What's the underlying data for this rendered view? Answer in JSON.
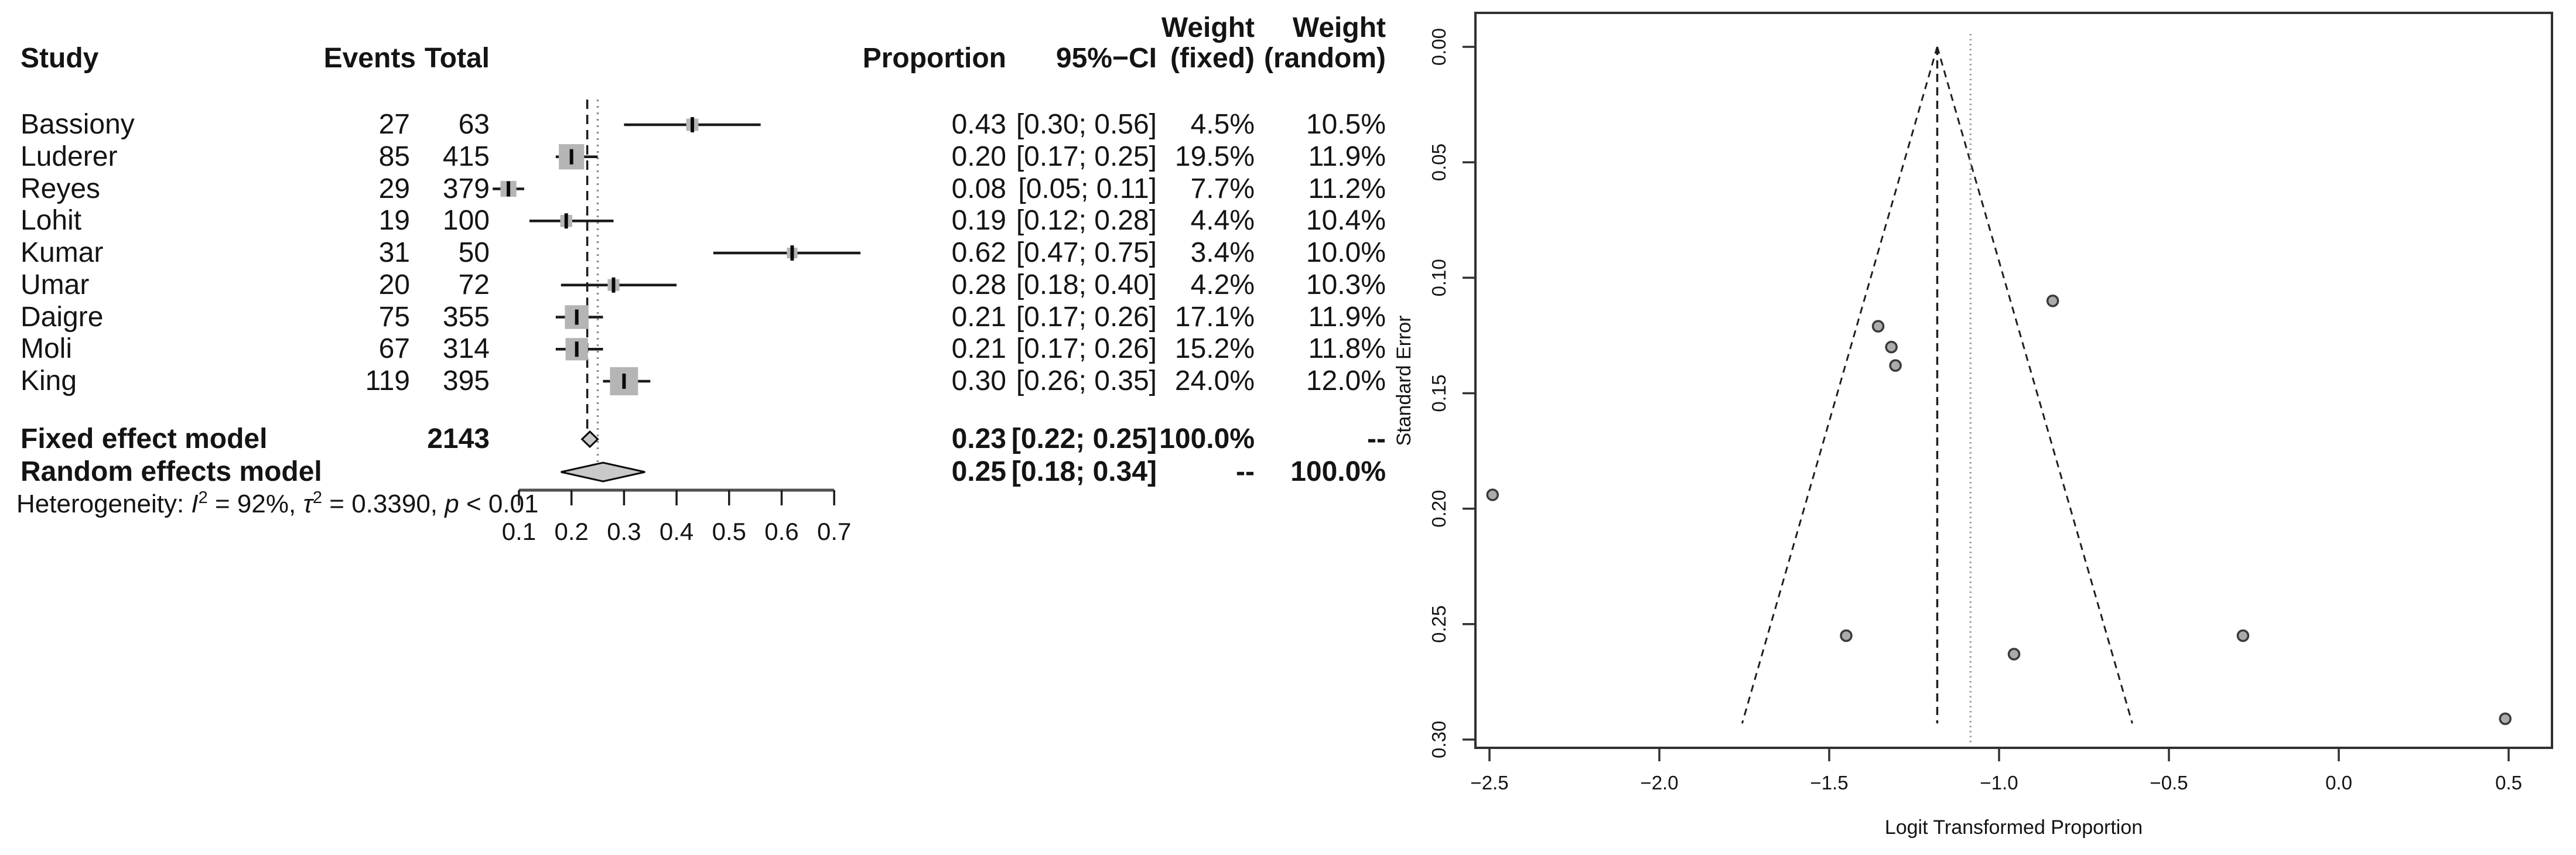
{
  "figure": {
    "description": "Meta-analysis figure: forest plot of proportions with study table (left) and funnel plot (right)"
  },
  "chart_data": [
    {
      "type": "forest",
      "header": {
        "study": "Study",
        "events": "Events",
        "total": "Total",
        "proportion": "Proportion",
        "ci": "95%−CI",
        "weight": "Weight",
        "weight_fixed_sub": "(fixed)",
        "weight_random_sub": "(random)"
      },
      "studies": [
        {
          "study": "Bassiony",
          "events": "27",
          "total": "63",
          "proportion": "0.43",
          "ci": "[0.30; 0.56]",
          "prop": 0.43,
          "ci_low": 0.3,
          "ci_high": 0.56,
          "weight_fixed": "4.5%",
          "weight_random": "10.5%",
          "wf": 4.5,
          "logit": -0.282,
          "se": 0.255
        },
        {
          "study": "Luderer",
          "events": "85",
          "total": "415",
          "proportion": "0.20",
          "ci": "[0.17; 0.25]",
          "prop": 0.2,
          "ci_low": 0.17,
          "ci_high": 0.25,
          "weight_fixed": "19.5%",
          "weight_random": "11.9%",
          "wf": 19.5,
          "logit": -1.356,
          "se": 0.121
        },
        {
          "study": "Reyes",
          "events": "29",
          "total": "379",
          "proportion": "0.08",
          "ci": "[0.05; 0.11]",
          "prop": 0.08,
          "ci_low": 0.05,
          "ci_high": 0.11,
          "weight_fixed": "7.7%",
          "weight_random": "11.2%",
          "wf": 7.7,
          "logit": -2.491,
          "se": 0.194
        },
        {
          "study": "Lohit",
          "events": "19",
          "total": "100",
          "proportion": "0.19",
          "ci": "[0.12; 0.28]",
          "prop": 0.19,
          "ci_low": 0.12,
          "ci_high": 0.28,
          "weight_fixed": "4.4%",
          "weight_random": "10.4%",
          "wf": 4.4,
          "logit": -1.45,
          "se": 0.255
        },
        {
          "study": "Kumar",
          "events": "31",
          "total": "50",
          "proportion": "0.62",
          "ci": "[0.47; 0.75]",
          "prop": 0.62,
          "ci_low": 0.47,
          "ci_high": 0.75,
          "weight_fixed": "3.4%",
          "weight_random": "10.0%",
          "wf": 3.4,
          "logit": 0.49,
          "se": 0.291
        },
        {
          "study": "Umar",
          "events": "20",
          "total": "72",
          "proportion": "0.28",
          "ci": "[0.18; 0.40]",
          "prop": 0.28,
          "ci_low": 0.18,
          "ci_high": 0.4,
          "weight_fixed": "4.2%",
          "weight_random": "10.3%",
          "wf": 4.2,
          "logit": -0.956,
          "se": 0.263
        },
        {
          "study": "Daigre",
          "events": "75",
          "total": "355",
          "proportion": "0.21",
          "ci": "[0.17; 0.26]",
          "prop": 0.21,
          "ci_low": 0.17,
          "ci_high": 0.26,
          "weight_fixed": "17.1%",
          "weight_random": "11.9%",
          "wf": 17.1,
          "logit": -1.317,
          "se": 0.13
        },
        {
          "study": "Moli",
          "events": "67",
          "total": "314",
          "proportion": "0.21",
          "ci": "[0.17; 0.26]",
          "prop": 0.21,
          "ci_low": 0.17,
          "ci_high": 0.26,
          "weight_fixed": "15.2%",
          "weight_random": "11.8%",
          "wf": 15.2,
          "logit": -1.305,
          "se": 0.138
        },
        {
          "study": "King",
          "events": "119",
          "total": "395",
          "proportion": "0.30",
          "ci": "[0.26; 0.35]",
          "prop": 0.3,
          "ci_low": 0.26,
          "ci_high": 0.35,
          "weight_fixed": "24.0%",
          "weight_random": "12.0%",
          "wf": 24.0,
          "logit": -0.842,
          "se": 0.11
        }
      ],
      "fixed": {
        "label": "Fixed effect model",
        "total": "2143",
        "proportion": "0.23",
        "ci": "[0.22; 0.25]",
        "prop": 0.23,
        "ci_low": 0.22,
        "ci_high": 0.25,
        "weight_fixed": "100.0%",
        "weight_random": "--"
      },
      "random": {
        "label": "Random effects model",
        "proportion": "0.25",
        "ci": "[0.18; 0.34]",
        "prop": 0.25,
        "ci_low": 0.18,
        "ci_high": 0.34,
        "weight_fixed": "--",
        "weight_random": "100.0%"
      },
      "heterogeneity": [
        {
          "text": "Heterogeneity: "
        },
        {
          "text": "I",
          "italic": true
        },
        {
          "text": "2",
          "sup": true
        },
        {
          "text": " = 92%, "
        },
        {
          "text": "τ",
          "italic": true
        },
        {
          "text": "2",
          "sup": true
        },
        {
          "text": " = 0.3390, "
        },
        {
          "text": "p",
          "italic": true
        },
        {
          "text": " < 0.01"
        }
      ],
      "axis": {
        "ticks": [
          0.1,
          0.2,
          0.3,
          0.4,
          0.5,
          0.6,
          0.7
        ],
        "labels": [
          "0.1",
          "0.2",
          "0.3",
          "0.4",
          "0.5",
          "0.6",
          "0.7"
        ],
        "xlim": [
          0.1,
          0.7
        ]
      }
    },
    {
      "type": "scatter",
      "xlabel": "Logit Transformed Proportion",
      "ylabel": "Standard Error",
      "x_ticks": [
        {
          "v": -2.5,
          "label": "−2.5"
        },
        {
          "v": -2.0,
          "label": "−2.0"
        },
        {
          "v": -1.5,
          "label": "−1.5"
        },
        {
          "v": -1.0,
          "label": "−1.0"
        },
        {
          "v": -0.5,
          "label": "−0.5"
        },
        {
          "v": 0.0,
          "label": "0.0"
        },
        {
          "v": 0.5,
          "label": "0.5"
        }
      ],
      "y_ticks": [
        {
          "v": 0.0,
          "label": "0.00"
        },
        {
          "v": 0.05,
          "label": "0.05"
        },
        {
          "v": 0.1,
          "label": "0.10"
        },
        {
          "v": 0.15,
          "label": "0.15"
        },
        {
          "v": 0.2,
          "label": "0.20"
        },
        {
          "v": 0.25,
          "label": "0.25"
        },
        {
          "v": 0.3,
          "label": "0.30"
        }
      ],
      "xlim": [
        -2.63,
        0.63
      ],
      "ylim": [
        0.305,
        0.0
      ],
      "grid": false,
      "points": [
        {
          "study": "Bassiony",
          "x": -0.282,
          "y": 0.255
        },
        {
          "study": "Luderer",
          "x": -1.356,
          "y": 0.121
        },
        {
          "study": "Reyes",
          "x": -2.491,
          "y": 0.194
        },
        {
          "study": "Lohit",
          "x": -1.45,
          "y": 0.255
        },
        {
          "study": "Kumar",
          "x": 0.49,
          "y": 0.291
        },
        {
          "study": "Umar",
          "x": -0.956,
          "y": 0.263
        },
        {
          "study": "Daigre",
          "x": -1.317,
          "y": 0.13
        },
        {
          "study": "Moli",
          "x": -1.305,
          "y": 0.138
        },
        {
          "study": "King",
          "x": -0.842,
          "y": 0.11
        }
      ],
      "ref_lines": {
        "fixed_logit": -1.182,
        "random_logit": -1.084,
        "ci_multiplier": 1.96,
        "funnel_se_max": 0.293
      },
      "colors": {
        "point_fill": "#ababab",
        "point_stroke": "#3a3a3a",
        "frame": "#303030",
        "dashed": "#1f1f1f",
        "dotted": "#9a9a9a"
      }
    }
  ]
}
